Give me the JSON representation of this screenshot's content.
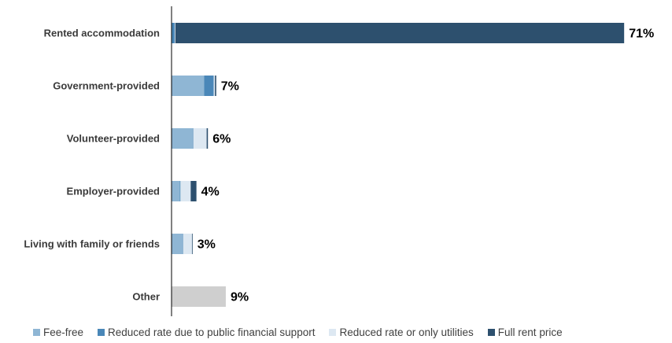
{
  "chart_data": {
    "type": "bar",
    "orientation": "horizontal",
    "stacked": true,
    "categories": [
      "Rented accommodation",
      "Government-provided",
      "Volunteer-provided",
      "Employer-provided",
      "Living with family or friends",
      "Other"
    ],
    "totals_labels": [
      "71%",
      "7%",
      "6%",
      "4%",
      "3%",
      "9%"
    ],
    "series": [
      {
        "name": "Fee-free",
        "color": "#8fb6d4",
        "values": [
          0,
          5.1,
          3.3,
          1.3,
          1.7,
          0
        ]
      },
      {
        "name": "Reduced rate due to public financial support",
        "color": "#4a87b8",
        "values": [
          0.5,
          1.5,
          0.1,
          0.1,
          0.1,
          0
        ]
      },
      {
        "name": "Reduced rate or only utilities",
        "color": "#dde8f2",
        "values": [
          0.1,
          0.2,
          2.1,
          1.6,
          1.4,
          0
        ]
      },
      {
        "name": "Full rent price",
        "color": "#2d506e",
        "values": [
          70.3,
          0.2,
          0.2,
          0.9,
          0.1,
          0
        ]
      },
      {
        "name": "",
        "color": "#cfcfcf",
        "values": [
          0,
          0,
          0,
          0,
          0,
          8.5
        ]
      }
    ],
    "xlim": [
      0,
      71
    ],
    "grid": false,
    "legend_position": "bottom"
  }
}
